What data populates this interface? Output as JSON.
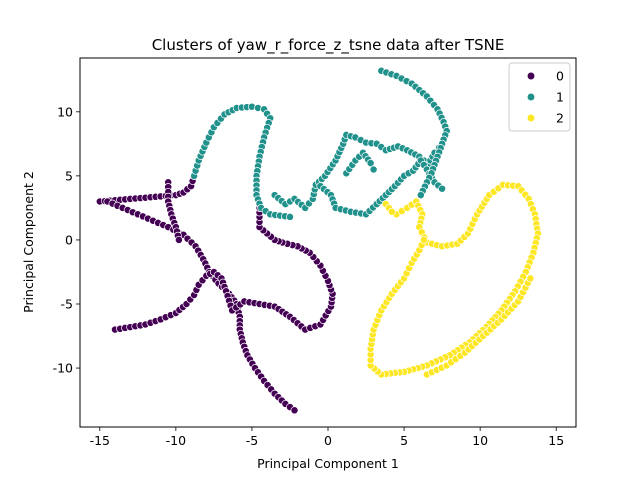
{
  "chart_data": {
    "type": "scatter",
    "title": "Clusters of yaw_r_force_z_tsne data after TSNE",
    "xlabel": "Principal Component 1",
    "ylabel": "Principal Component 2",
    "xlim": [
      -16.3,
      16.3
    ],
    "ylim": [
      -14.6,
      14.2
    ],
    "xticks": [
      -15,
      -10,
      -5,
      0,
      5,
      10,
      15
    ],
    "yticks": [
      -10,
      -5,
      0,
      5,
      10
    ],
    "grid": false,
    "legend_position": "top-right",
    "series": [
      {
        "name": "0",
        "color": "#440154",
        "paths": [
          [
            [
              -15.0,
              3.0
            ],
            [
              -14.0,
              3.1
            ],
            [
              -13.0,
              3.2
            ],
            [
              -12.0,
              3.3
            ],
            [
              -11.0,
              3.4
            ],
            [
              -10.0,
              3.5
            ],
            [
              -9.5,
              3.7
            ],
            [
              -9.0,
              4.2
            ],
            [
              -8.8,
              5.0
            ]
          ],
          [
            [
              -14.5,
              3.0
            ],
            [
              -13.5,
              2.5
            ],
            [
              -12.5,
              2.0
            ],
            [
              -11.5,
              1.5
            ],
            [
              -10.5,
              1.0
            ],
            [
              -9.5,
              0.4
            ],
            [
              -8.7,
              -0.5
            ],
            [
              -8.2,
              -1.5
            ],
            [
              -7.8,
              -2.5
            ],
            [
              -7.2,
              -3.4
            ],
            [
              -6.5,
              -4.2
            ],
            [
              -6.0,
              -5.0
            ],
            [
              -5.8,
              -6.0
            ],
            [
              -5.8,
              -7.0
            ],
            [
              -5.6,
              -8.0
            ],
            [
              -5.3,
              -9.0
            ],
            [
              -4.8,
              -10.0
            ],
            [
              -4.2,
              -11.0
            ],
            [
              -3.5,
              -12.0
            ],
            [
              -2.8,
              -12.8
            ],
            [
              -2.2,
              -13.3
            ]
          ],
          [
            [
              -14.0,
              -7.0
            ],
            [
              -13.0,
              -6.8
            ],
            [
              -12.0,
              -6.6
            ],
            [
              -11.0,
              -6.2
            ],
            [
              -10.0,
              -5.7
            ],
            [
              -9.3,
              -5.0
            ],
            [
              -8.8,
              -4.3
            ],
            [
              -8.5,
              -3.5
            ],
            [
              -8.0,
              -2.8
            ],
            [
              -7.5,
              -2.5
            ],
            [
              -7.0,
              -3.0
            ],
            [
              -6.7,
              -4.0
            ],
            [
              -6.3,
              -5.5
            ],
            [
              -5.5,
              -4.8
            ],
            [
              -4.5,
              -5.0
            ],
            [
              -3.5,
              -5.2
            ],
            [
              -2.5,
              -6.0
            ],
            [
              -1.5,
              -7.0
            ],
            [
              -0.5,
              -6.6
            ],
            [
              0.2,
              -5.2
            ],
            [
              0.3,
              -4.2
            ],
            [
              0.0,
              -3.2
            ],
            [
              -0.5,
              -2.0
            ],
            [
              -1.2,
              -1.0
            ],
            [
              -2.0,
              -0.5
            ],
            [
              -3.0,
              -0.2
            ],
            [
              -3.5,
              0.0
            ],
            [
              -4.0,
              0.5
            ],
            [
              -4.5,
              1.0
            ],
            [
              -4.5,
              1.8
            ],
            [
              -4.5,
              2.5
            ]
          ],
          [
            [
              -10.5,
              4.5
            ],
            [
              -10.5,
              3.0
            ],
            [
              -10.3,
              2.0
            ],
            [
              -10.0,
              1.0
            ],
            [
              -9.8,
              0.0
            ]
          ]
        ]
      },
      {
        "name": "1",
        "color": "#21918c",
        "paths": [
          [
            [
              -8.8,
              5.0
            ],
            [
              -8.5,
              6.2
            ],
            [
              -8.0,
              7.6
            ],
            [
              -7.5,
              8.8
            ],
            [
              -6.8,
              9.8
            ],
            [
              -6.0,
              10.3
            ],
            [
              -5.0,
              10.4
            ],
            [
              -4.2,
              10.2
            ],
            [
              -3.8,
              9.5
            ],
            [
              -4.2,
              8.0
            ],
            [
              -4.5,
              6.5
            ],
            [
              -4.7,
              5.0
            ],
            [
              -4.7,
              3.5
            ],
            [
              -4.4,
              2.5
            ],
            [
              -3.8,
              2.0
            ],
            [
              -2.5,
              1.8
            ]
          ],
          [
            [
              -3.5,
              3.5
            ],
            [
              -2.8,
              2.8
            ],
            [
              -2.2,
              3.2
            ],
            [
              -1.5,
              2.5
            ],
            [
              -1.0,
              3.2
            ],
            [
              -0.8,
              4.3
            ],
            [
              -0.2,
              5.0
            ],
            [
              0.5,
              6.2
            ],
            [
              1.0,
              7.5
            ],
            [
              1.2,
              8.2
            ],
            [
              1.8,
              8.0
            ],
            [
              2.5,
              7.6
            ],
            [
              3.2,
              7.5
            ],
            [
              3.8,
              7.0
            ],
            [
              4.6,
              7.3
            ],
            [
              5.2,
              7.0
            ],
            [
              6.0,
              6.5
            ],
            [
              6.6,
              5.9
            ],
            [
              7.0,
              6.8
            ],
            [
              7.3,
              7.2
            ]
          ],
          [
            [
              -0.5,
              4.2
            ],
            [
              0.2,
              3.5
            ],
            [
              0.5,
              2.5
            ],
            [
              1.5,
              2.2
            ],
            [
              2.5,
              2.0
            ],
            [
              3.2,
              2.8
            ],
            [
              3.8,
              3.5
            ],
            [
              4.4,
              4.2
            ],
            [
              5.0,
              5.0
            ],
            [
              5.6,
              5.4
            ],
            [
              6.1,
              6.2
            ],
            [
              6.5,
              5.5
            ],
            [
              7.0,
              4.5
            ],
            [
              7.5,
              4.0
            ]
          ],
          [
            [
              3.5,
              13.2
            ],
            [
              4.5,
              12.8
            ],
            [
              5.5,
              12.2
            ],
            [
              6.5,
              11.2
            ],
            [
              7.2,
              10.2
            ],
            [
              7.6,
              9.2
            ],
            [
              7.8,
              8.5
            ],
            [
              7.5,
              7.5
            ],
            [
              7.2,
              6.5
            ],
            [
              6.8,
              5.2
            ],
            [
              6.5,
              4.5
            ],
            [
              6.1,
              3.5
            ]
          ],
          [
            [
              1.2,
              5.2
            ],
            [
              1.8,
              6.2
            ],
            [
              2.3,
              6.8
            ],
            [
              2.8,
              6.0
            ],
            [
              3.0,
              5.5
            ]
          ]
        ]
      },
      {
        "name": "2",
        "color": "#fde725",
        "paths": [
          [
            [
              4.5,
              2.0
            ],
            [
              5.2,
              2.5
            ],
            [
              5.8,
              3.0
            ],
            [
              6.2,
              2.0
            ],
            [
              6.0,
              1.0
            ],
            [
              6.5,
              -0.2
            ],
            [
              7.5,
              -0.5
            ],
            [
              8.5,
              -0.3
            ],
            [
              9.2,
              0.5
            ],
            [
              9.8,
              2.0
            ],
            [
              10.6,
              3.5
            ],
            [
              11.5,
              4.3
            ],
            [
              12.5,
              4.2
            ],
            [
              13.2,
              3.2
            ],
            [
              13.6,
              2.0
            ],
            [
              13.8,
              0.5
            ],
            [
              13.5,
              -1.0
            ],
            [
              13.0,
              -2.5
            ],
            [
              12.3,
              -4.0
            ],
            [
              11.4,
              -5.5
            ],
            [
              10.4,
              -6.8
            ],
            [
              9.3,
              -8.0
            ],
            [
              8.0,
              -9.0
            ],
            [
              6.5,
              -9.8
            ],
            [
              5.0,
              -10.3
            ],
            [
              3.5,
              -10.5
            ],
            [
              2.8,
              -9.8
            ],
            [
              2.8,
              -8.5
            ],
            [
              3.0,
              -7.0
            ],
            [
              3.5,
              -5.5
            ],
            [
              4.2,
              -4.2
            ],
            [
              5.0,
              -3.0
            ],
            [
              5.5,
              -1.8
            ],
            [
              6.0,
              -0.8
            ],
            [
              6.3,
              0.0
            ]
          ],
          [
            [
              6.5,
              -10.5
            ],
            [
              7.8,
              -9.8
            ],
            [
              9.0,
              -8.8
            ],
            [
              10.2,
              -7.5
            ],
            [
              11.4,
              -6.2
            ],
            [
              12.5,
              -4.8
            ],
            [
              13.3,
              -3.0
            ]
          ],
          [
            [
              3.8,
              2.8
            ],
            [
              4.2,
              2.2
            ]
          ]
        ]
      }
    ]
  }
}
